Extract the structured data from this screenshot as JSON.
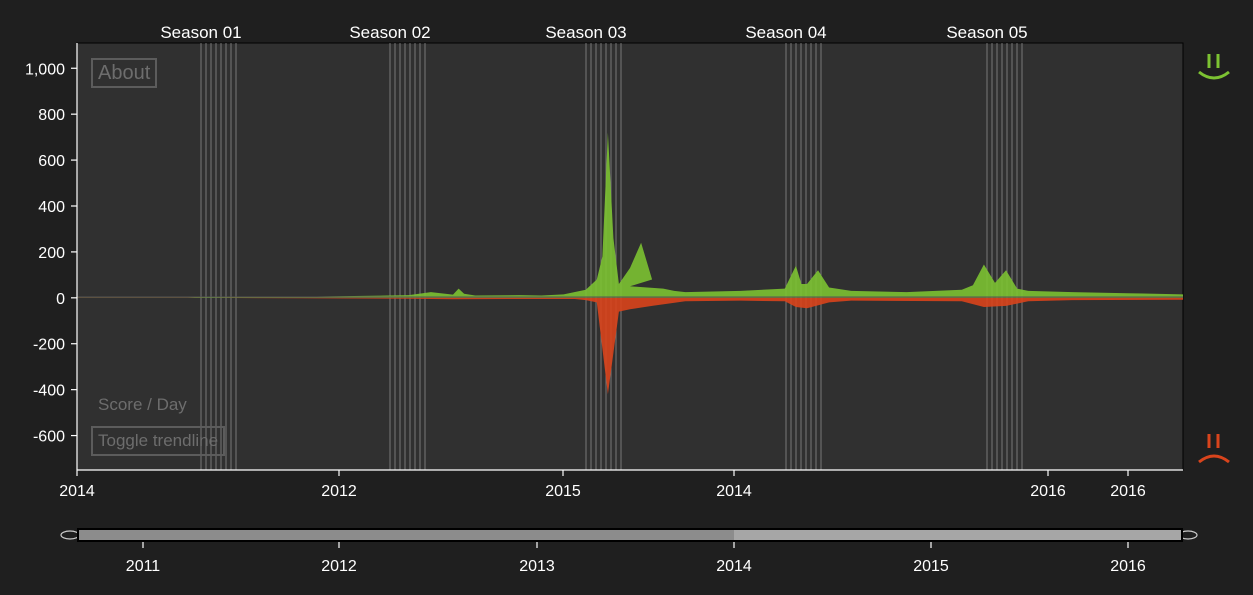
{
  "colors": {
    "positive": "#7cc232",
    "negative": "#d9441c",
    "plot_background": "#303030",
    "page_background": "#1f1f1f",
    "season_line": "#8a8a8a",
    "axis": "#ffffff",
    "brush_track": "#8c8c8c",
    "brush_selected": "#a6a6a6"
  },
  "ui": {
    "about_label": "About",
    "score_label": "Score / Day",
    "toggle_trendline_label": "Toggle trendline",
    "happy_icon": "smiley-face-icon",
    "sad_icon": "frowning-face-icon"
  },
  "chart_data": [
    {
      "type": "area",
      "ylabel": "Score / Day",
      "ylim": [
        -750,
        1110
      ],
      "y_ticks": [
        "1,000",
        "800",
        "600",
        "400",
        "200",
        "0",
        "-200",
        "-400",
        "-600"
      ],
      "y_tick_values": [
        1000,
        800,
        600,
        400,
        200,
        0,
        -200,
        -400,
        -600
      ],
      "x_tick_labels": [
        "2014",
        "2012",
        "2015",
        "2014",
        "2016",
        "2016"
      ],
      "seasons": [
        "Season 01",
        "Season 02",
        "Season 03",
        "Season 04",
        "Season 05"
      ],
      "grid": false,
      "series": [
        {
          "name": "positive",
          "x": [
            0,
            0.1,
            0.11,
            0.15,
            0.2,
            0.28,
            0.3,
            0.32,
            0.34,
            0.345,
            0.35,
            0.36,
            0.4,
            0.42,
            0.44,
            0.46,
            0.47,
            0.475,
            0.48,
            0.485,
            0.49,
            0.5,
            0.51,
            0.52,
            0.5,
            0.53,
            0.54,
            0.55,
            0.6,
            0.64,
            0.65,
            0.655,
            0.66,
            0.67,
            0.68,
            0.7,
            0.75,
            0.8,
            0.81,
            0.82,
            0.83,
            0.84,
            0.85,
            0.86,
            0.9,
            0.95,
            1.0
          ],
          "values": [
            0,
            0,
            2,
            3,
            5,
            10,
            12,
            25,
            14,
            40,
            18,
            10,
            12,
            10,
            15,
            35,
            80,
            180,
            720,
            260,
            60,
            130,
            240,
            80,
            50,
            40,
            30,
            25,
            30,
            40,
            140,
            60,
            60,
            120,
            45,
            30,
            25,
            35,
            55,
            145,
            65,
            120,
            40,
            30,
            25,
            20,
            15
          ]
        },
        {
          "name": "negative",
          "x": [
            0,
            0.1,
            0.2,
            0.3,
            0.34,
            0.4,
            0.45,
            0.46,
            0.47,
            0.48,
            0.49,
            0.5,
            0.52,
            0.55,
            0.6,
            0.64,
            0.65,
            0.66,
            0.68,
            0.7,
            0.8,
            0.82,
            0.84,
            0.86,
            0.9,
            1.0
          ],
          "values": [
            0,
            0,
            -2,
            -4,
            -6,
            -5,
            -5,
            -10,
            -20,
            -420,
            -60,
            -50,
            -35,
            -15,
            -12,
            -15,
            -40,
            -45,
            -20,
            -12,
            -15,
            -40,
            -35,
            -15,
            -10,
            -8
          ]
        }
      ]
    },
    {
      "type": "area",
      "title": "",
      "x_ticks": [
        "2011",
        "2012",
        "2013",
        "2014",
        "2015",
        "2016"
      ],
      "grid": false
    }
  ]
}
